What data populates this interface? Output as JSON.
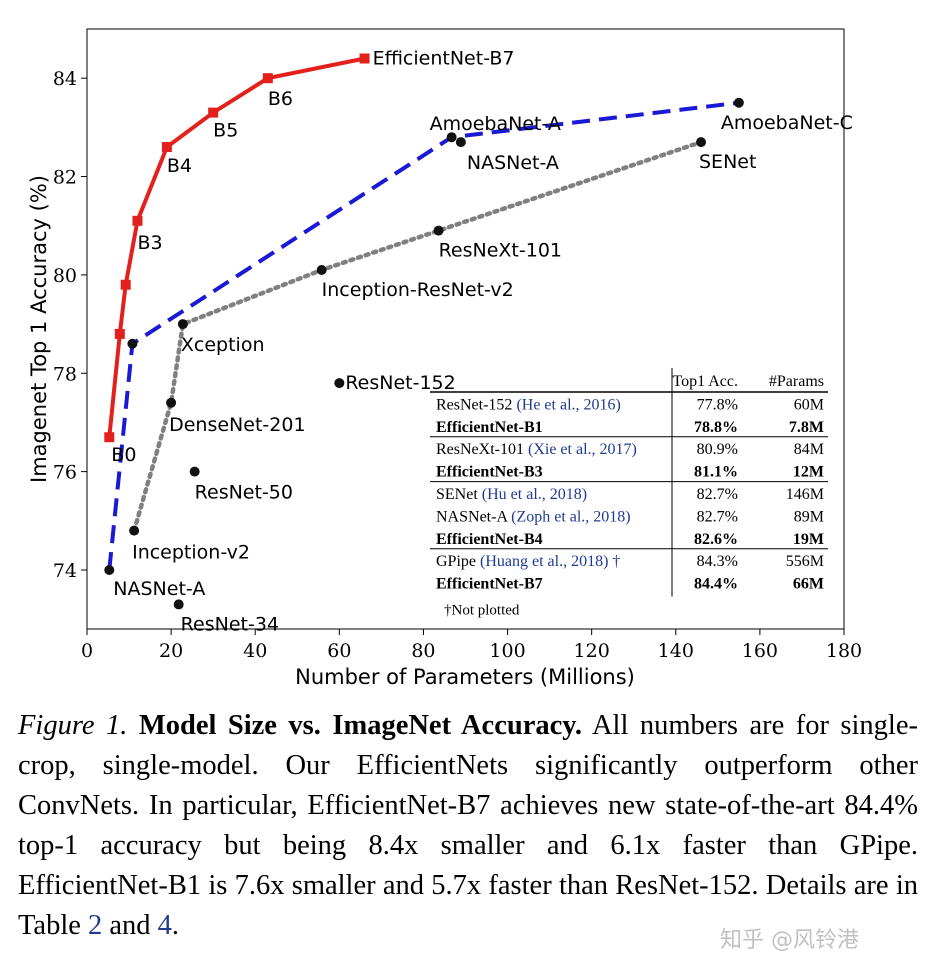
{
  "chart_data": {
    "type": "scatter",
    "xlabel": "Number of Parameters (Millions)",
    "ylabel": "Imagenet Top 1 Accuracy (%)",
    "xlim": [
      0,
      180
    ],
    "ylim": [
      72.8,
      85.0
    ],
    "xticks": [
      0,
      20,
      40,
      60,
      80,
      100,
      120,
      140,
      160,
      180
    ],
    "yticks": [
      74,
      76,
      78,
      80,
      82,
      84
    ],
    "grid": false,
    "series": [
      {
        "color": "#e3211c",
        "line": "solid",
        "marker": "square",
        "points": [
          {
            "x": 5.3,
            "y": 76.7,
            "label": "B0"
          },
          {
            "x": 7.8,
            "y": 78.8,
            "label": ""
          },
          {
            "x": 9.2,
            "y": 79.8,
            "label": ""
          },
          {
            "x": 12,
            "y": 81.1,
            "label": "B3"
          },
          {
            "x": 19,
            "y": 82.6,
            "label": "B4"
          },
          {
            "x": 30,
            "y": 83.3,
            "label": "B5"
          },
          {
            "x": 43,
            "y": 84.0,
            "label": "B6"
          },
          {
            "x": 66,
            "y": 84.4,
            "label": "EfficientNet-B7"
          }
        ]
      },
      {
        "color": "#1a1ad6",
        "line": "dashed",
        "marker": "dot",
        "points": [
          {
            "x": 5.3,
            "y": 74.0,
            "label": "NASNet-A"
          },
          {
            "x": 10.8,
            "y": 78.6,
            "label": ""
          },
          {
            "x": 86.7,
            "y": 82.8,
            "label": "AmoebaNet-A"
          },
          {
            "x": 155,
            "y": 83.5,
            "label": "AmoebaNet-C"
          }
        ]
      },
      {
        "color": "#808080",
        "line": "dotted",
        "marker": "dot",
        "points": [
          {
            "x": 11.2,
            "y": 74.8,
            "label": "Inception-v2"
          },
          {
            "x": 20,
            "y": 77.4,
            "label": "DenseNet-201"
          },
          {
            "x": 22.8,
            "y": 79.0,
            "label": "Xception"
          },
          {
            "x": 55.8,
            "y": 80.1,
            "label": "Inception-ResNet-v2"
          },
          {
            "x": 83.6,
            "y": 80.9,
            "label": "ResNeXt-101"
          },
          {
            "x": 146,
            "y": 82.7,
            "label": "SENet"
          }
        ]
      },
      {
        "color": "#000000",
        "line": "none",
        "marker": "dot",
        "points": [
          {
            "x": 21.8,
            "y": 73.3,
            "label": "ResNet-34"
          },
          {
            "x": 25.6,
            "y": 76.0,
            "label": "ResNet-50"
          },
          {
            "x": 60,
            "y": 77.8,
            "label": "ResNet-152"
          },
          {
            "x": 88.9,
            "y": 82.7,
            "label": "NASNet-A"
          }
        ]
      }
    ],
    "table": {
      "headers": [
        "",
        "Top1 Acc.",
        "#Params"
      ],
      "groups": [
        [
          {
            "name": "ResNet-152",
            "cite": "(He et al., 2016)",
            "acc": "77.8%",
            "params": "60M",
            "bold": false
          },
          {
            "name": "EfficientNet-B1",
            "cite": "",
            "acc": "78.8%",
            "params": "7.8M",
            "bold": true
          }
        ],
        [
          {
            "name": "ResNeXt-101",
            "cite": "(Xie et al., 2017)",
            "acc": "80.9%",
            "params": "84M",
            "bold": false
          },
          {
            "name": "EfficientNet-B3",
            "cite": "",
            "acc": "81.1%",
            "params": "12M",
            "bold": true
          }
        ],
        [
          {
            "name": "SENet",
            "cite": "(Hu et al., 2018)",
            "acc": "82.7%",
            "params": "146M",
            "bold": false
          },
          {
            "name": "NASNet-A",
            "cite": "(Zoph et al., 2018)",
            "acc": "82.7%",
            "params": "89M",
            "bold": false
          },
          {
            "name": "EfficientNet-B4",
            "cite": "",
            "acc": "82.6%",
            "params": "19M",
            "bold": true
          }
        ],
        [
          {
            "name": "GPipe",
            "cite": "(Huang et al., 2018) †",
            "acc": "84.3%",
            "params": "556M",
            "bold": false
          },
          {
            "name": "EfficientNet-B7",
            "cite": "",
            "acc": "84.4%",
            "params": "66M",
            "bold": true
          }
        ]
      ],
      "footnote": "†Not plotted"
    }
  },
  "caption": {
    "lead": "Figure 1.",
    "title": "Model Size vs. ImageNet Accuracy.",
    "text1": " All numbers are for single-crop, single-model. Our EfficientNets significantly outperform other ConvNets. In particular, EfficientNet-B7 achieves new state-of-the-art 84.4% top-1 accuracy but being 8.4x smaller and 6.1x faster than GPipe. EfficientNet-B1 is 7.6x smaller and 5.7x faster than ResNet-152. Details are in Table ",
    "ref1": "2",
    "text2": " and ",
    "ref2": "4",
    "text3": "."
  },
  "watermark": "知乎 @风铃港"
}
